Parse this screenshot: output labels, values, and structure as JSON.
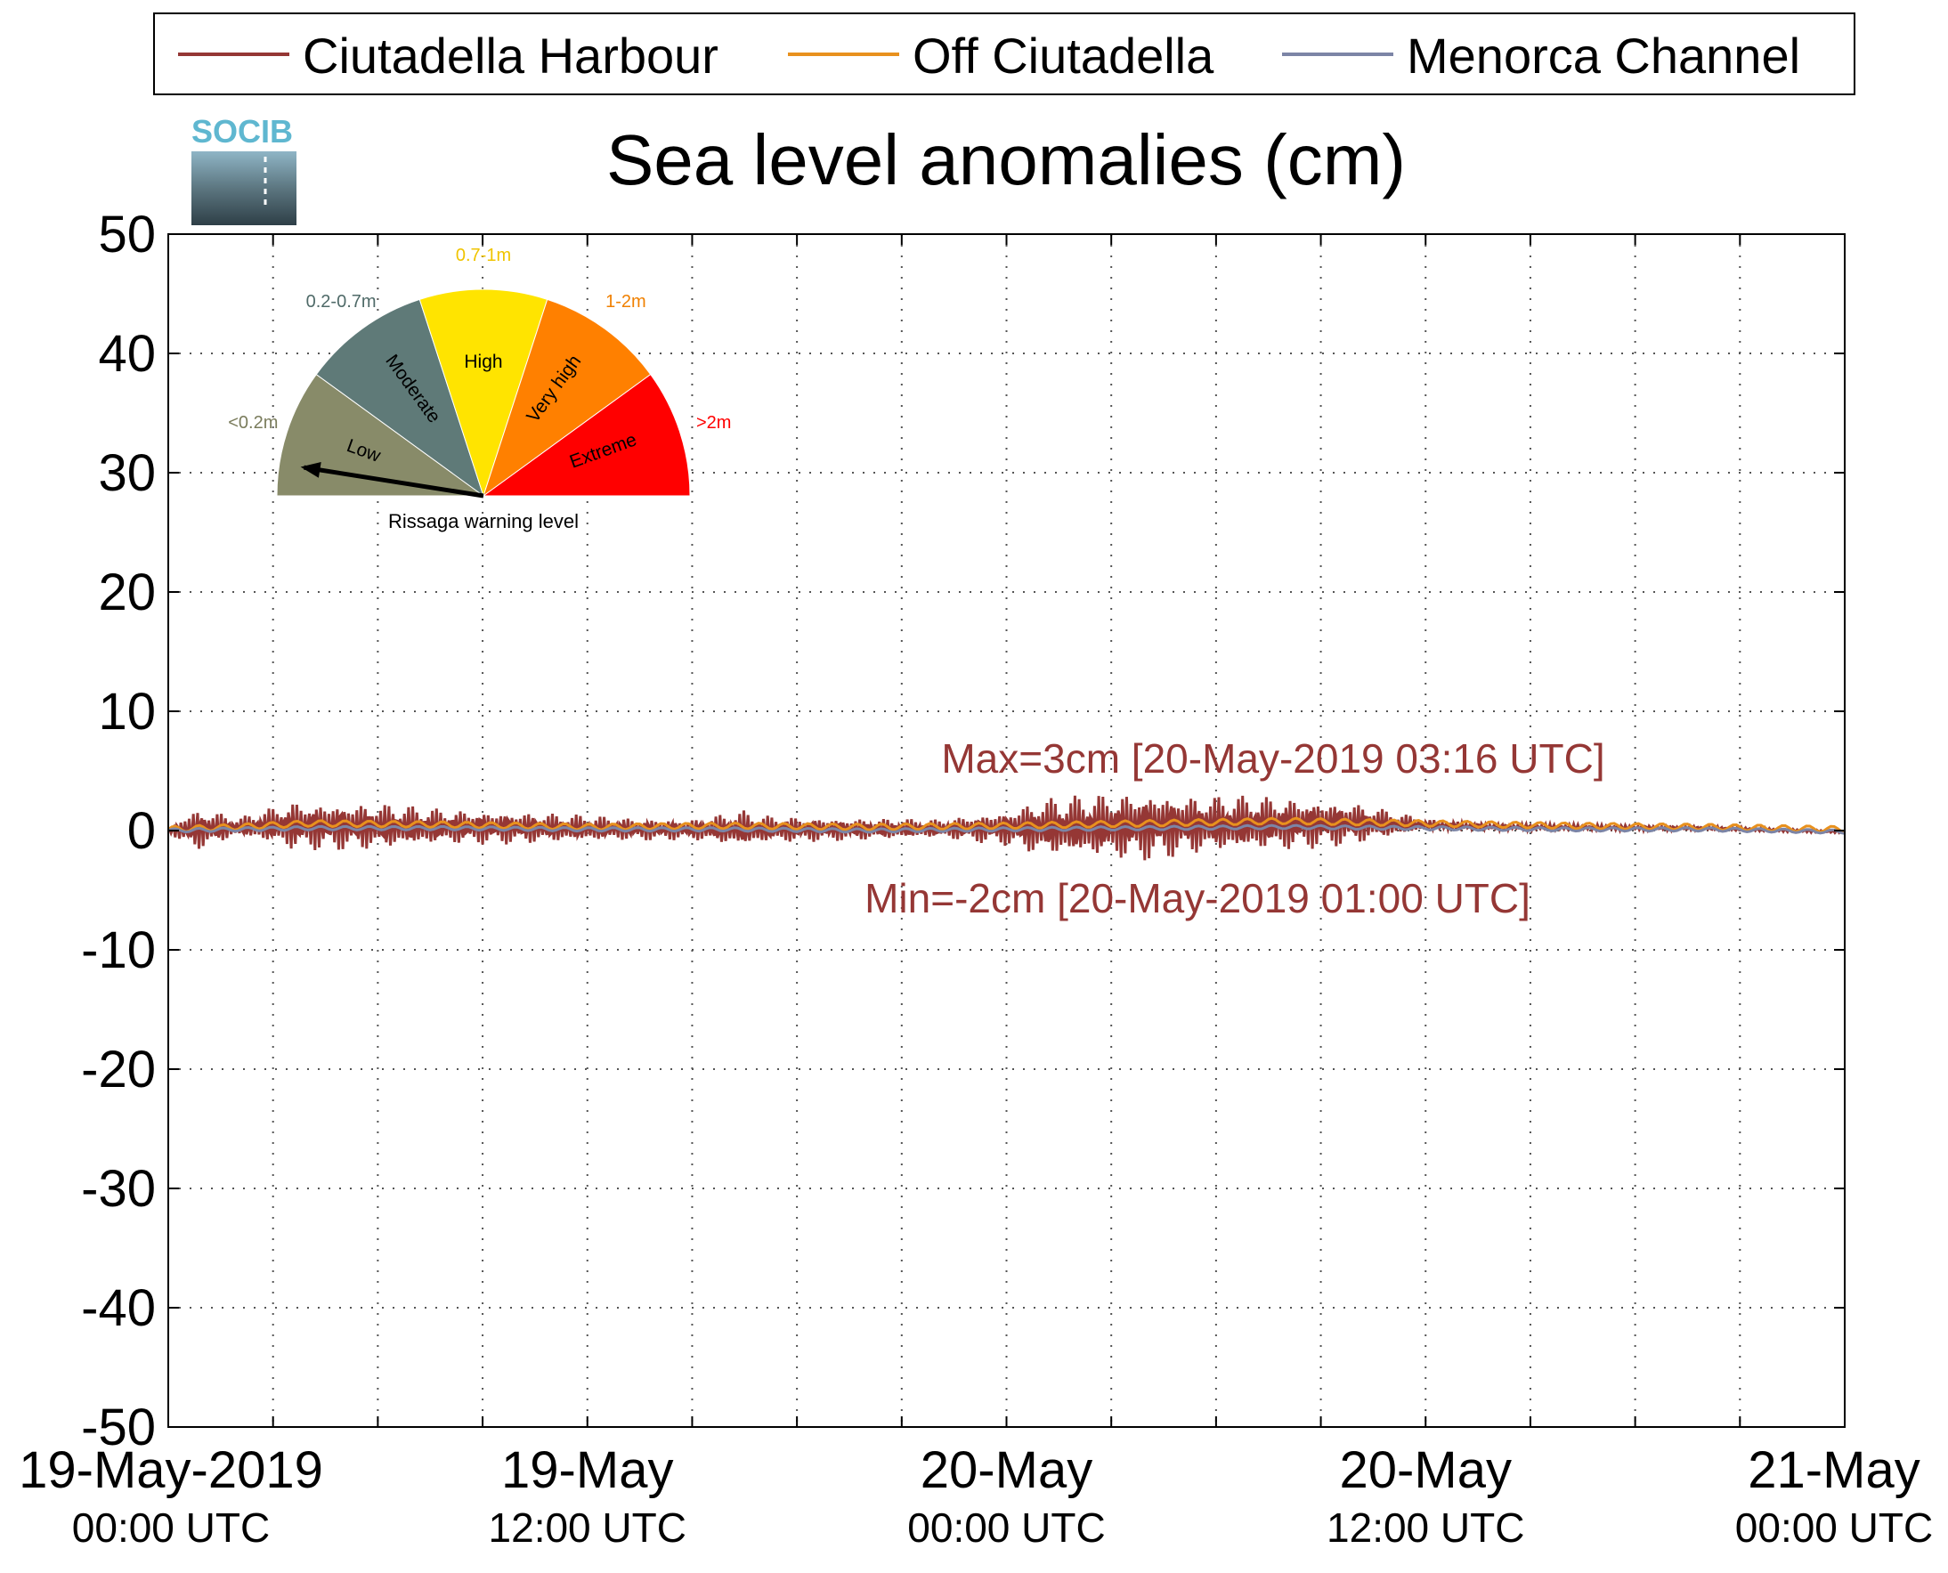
{
  "chart_data": {
    "type": "line",
    "title": "Sea level anomalies (cm)",
    "logo_text": "SOCIB",
    "ylim": [
      -50,
      50
    ],
    "yticks": [
      50,
      40,
      30,
      20,
      10,
      0,
      -10,
      -20,
      -30,
      -40,
      -50
    ],
    "xlim_hours": [
      0,
      48
    ],
    "xticks": [
      {
        "line1": "19-May-2019",
        "line2": "00:00 UTC"
      },
      {
        "line1": "19-May",
        "line2": "12:00 UTC"
      },
      {
        "line1": "20-May",
        "line2": "00:00 UTC"
      },
      {
        "line1": "20-May",
        "line2": "12:00 UTC"
      },
      {
        "line1": "21-May",
        "line2": "00:00 UTC"
      }
    ],
    "grid": true,
    "legend": {
      "placement": "top",
      "entries": [
        {
          "name": "Ciutadella Harbour",
          "color": "#953735"
        },
        {
          "name": "Off Ciutadella",
          "color": "#e8911e"
        },
        {
          "name": "Menorca Channel",
          "color": "#7c85a6"
        }
      ]
    },
    "series": [
      {
        "name": "Ciutadella Harbour",
        "color": "#953735",
        "envelope": [
          [
            0,
            0
          ],
          [
            0.5,
            1.5
          ],
          [
            1,
            1.8
          ],
          [
            2,
            0.8
          ],
          [
            3,
            1.6
          ],
          [
            3.5,
            2.1
          ],
          [
            6,
            2.0
          ],
          [
            8,
            1.5
          ],
          [
            10,
            1.4
          ],
          [
            13,
            1.0
          ],
          [
            15,
            0.9
          ],
          [
            16.5,
            1.6
          ],
          [
            17,
            1.2
          ],
          [
            19,
            1.0
          ],
          [
            22,
            0.8
          ],
          [
            24,
            1.5
          ],
          [
            25,
            2.5
          ],
          [
            27,
            2.8
          ],
          [
            28,
            3.0
          ],
          [
            29.5,
            2.5
          ],
          [
            31,
            2.4
          ],
          [
            32,
            2.3
          ],
          [
            34,
            1.8
          ],
          [
            36,
            0.5
          ],
          [
            38,
            0.3
          ],
          [
            48,
            0.1
          ]
        ],
        "baseline": [
          [
            0,
            0
          ],
          [
            3,
            0.4
          ],
          [
            8,
            0.3
          ],
          [
            14,
            0.1
          ],
          [
            20,
            0.1
          ],
          [
            24,
            0.2
          ],
          [
            30,
            0.5
          ],
          [
            34,
            0.6
          ],
          [
            38,
            0.3
          ],
          [
            44,
            0.2
          ],
          [
            48,
            -0.1
          ]
        ]
      },
      {
        "name": "Off Ciutadella",
        "color": "#e8911e",
        "points": [
          [
            0,
            0.1
          ],
          [
            2,
            0.3
          ],
          [
            4,
            0.6
          ],
          [
            8,
            0.5
          ],
          [
            12,
            0.3
          ],
          [
            16,
            0.4
          ],
          [
            20,
            0.3
          ],
          [
            24,
            0.4
          ],
          [
            28,
            0.6
          ],
          [
            32,
            0.8
          ],
          [
            36,
            0.6
          ],
          [
            40,
            0.4
          ],
          [
            44,
            0.3
          ],
          [
            48,
            0.1
          ]
        ]
      },
      {
        "name": "Menorca Channel",
        "color": "#7c85a6",
        "points": [
          [
            0,
            0
          ],
          [
            4,
            0.2
          ],
          [
            8,
            0.2
          ],
          [
            12,
            0.1
          ],
          [
            16,
            0.1
          ],
          [
            20,
            0.0
          ],
          [
            24,
            0.1
          ],
          [
            28,
            0.2
          ],
          [
            32,
            0.3
          ],
          [
            36,
            0.2
          ],
          [
            40,
            0.1
          ],
          [
            44,
            0.1
          ],
          [
            48,
            -0.1
          ]
        ]
      }
    ],
    "annotations": [
      {
        "text": "Max=3cm [20-May-2019 03:16 UTC]",
        "color": "#953735"
      },
      {
        "text": "Min=-2cm [20-May-2019 01:00 UTC]",
        "color": "#953735"
      }
    ]
  },
  "gauge": {
    "caption": "Rissaga warning level",
    "current_level": "Low",
    "segments": [
      {
        "label": "Low",
        "range": "<0.2m",
        "color": "#888b69",
        "range_color": "#7a7c5c"
      },
      {
        "label": "Moderate",
        "range": "0.2-0.7m",
        "color": "#5f7a78",
        "range_color": "#4f6a68"
      },
      {
        "label": "High",
        "range": "0.7-1m",
        "color": "#ffe400",
        "range_color": "#f0c400"
      },
      {
        "label": "Very high",
        "range": "1-2m",
        "color": "#ff8000",
        "range_color": "#f08000"
      },
      {
        "label": "Extreme",
        "range": ">2m",
        "color": "#ff0000",
        "range_color": "#ff0000"
      }
    ]
  }
}
